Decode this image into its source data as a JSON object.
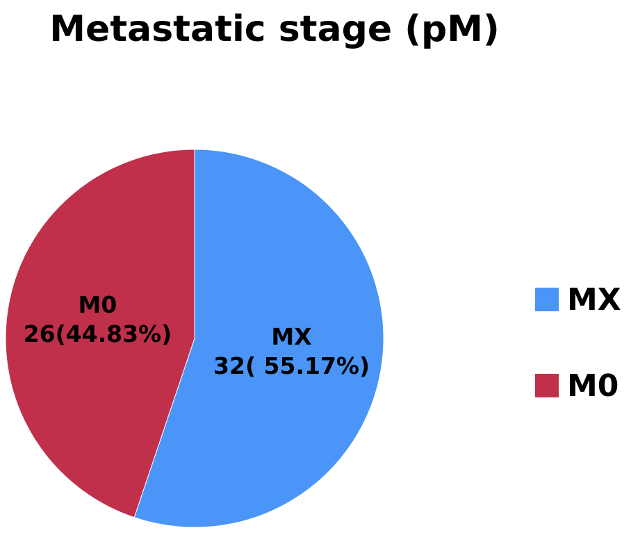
{
  "chart_data": {
    "type": "pie",
    "title": "Metastatic stage (pM)",
    "slices": [
      {
        "name": "MX",
        "value": 32,
        "percent": 55.17,
        "label_name": "MX",
        "label_value": "32( 55.17%)",
        "color": "#4a95f7"
      },
      {
        "name": "M0",
        "value": 26,
        "percent": 44.83,
        "label_name": "M0",
        "label_value": "26(44.83%)",
        "color": "#c0304a"
      }
    ],
    "legend": {
      "placement": "right",
      "items": [
        {
          "label": "MX",
          "color": "#4a95f7"
        },
        {
          "label": "M0",
          "color": "#c0304a"
        }
      ]
    }
  }
}
